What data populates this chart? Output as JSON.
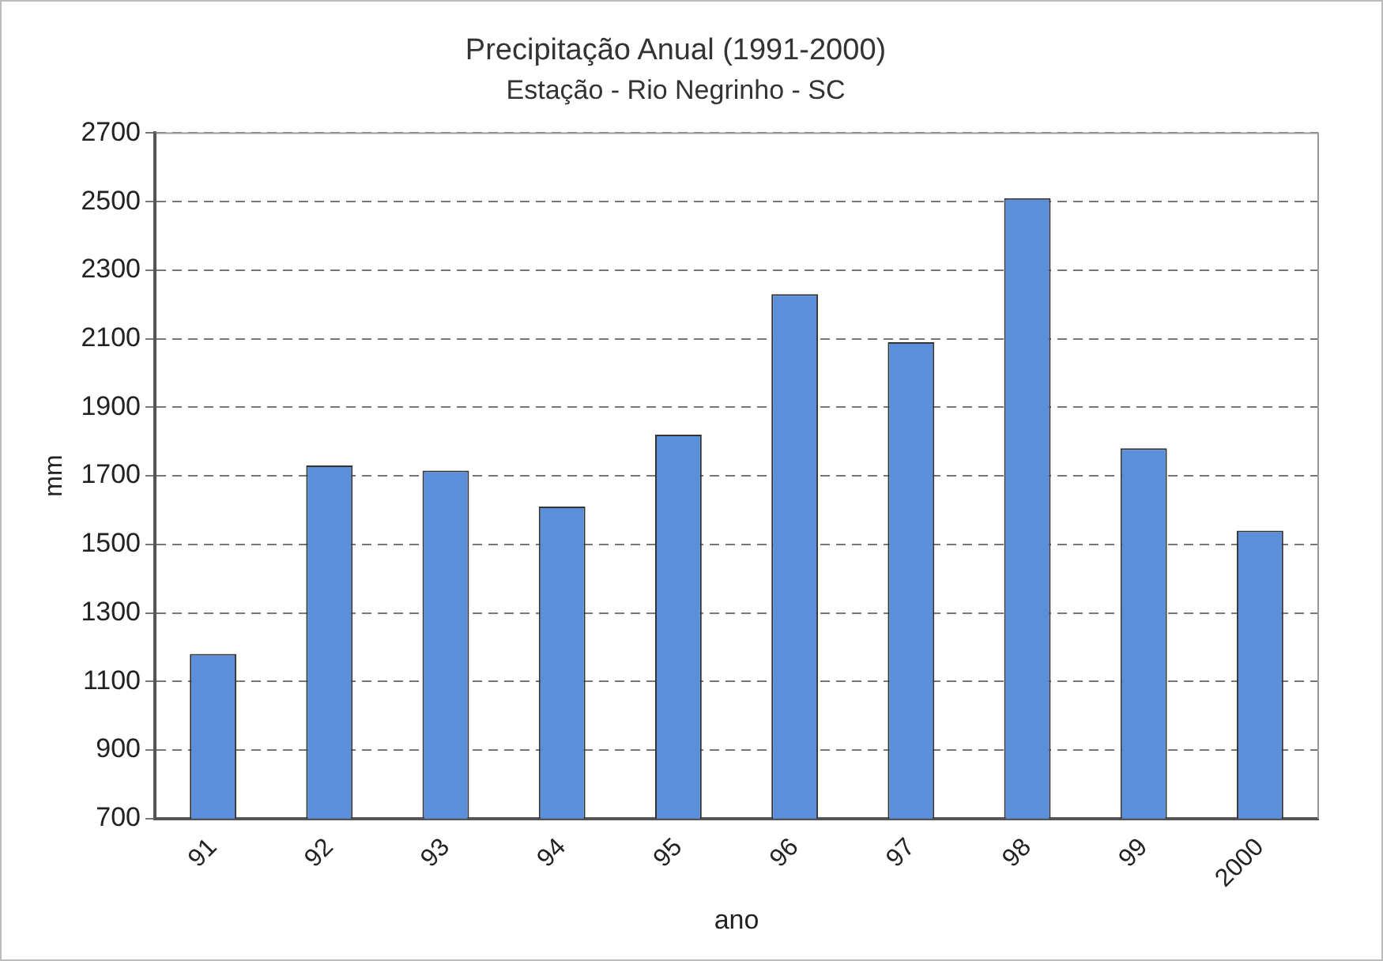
{
  "chart_data": {
    "type": "bar",
    "title": "Precipitação Anual (1991-2000)",
    "subtitle": "Estação - Rio Negrinho - SC",
    "xlabel": "ano",
    "ylabel": "mm",
    "categories": [
      "91",
      "92",
      "93",
      "94",
      "95",
      "96",
      "97",
      "98",
      "99",
      "2000"
    ],
    "values": [
      1180,
      1730,
      1715,
      1610,
      1820,
      2230,
      2090,
      2510,
      1780,
      1540
    ],
    "color": "#5b8fdc",
    "ylim": [
      700,
      2700
    ],
    "yticks": [
      700,
      900,
      1100,
      1300,
      1500,
      1700,
      1900,
      2100,
      2300,
      2500,
      2700
    ],
    "grid": "y",
    "legend": false
  }
}
